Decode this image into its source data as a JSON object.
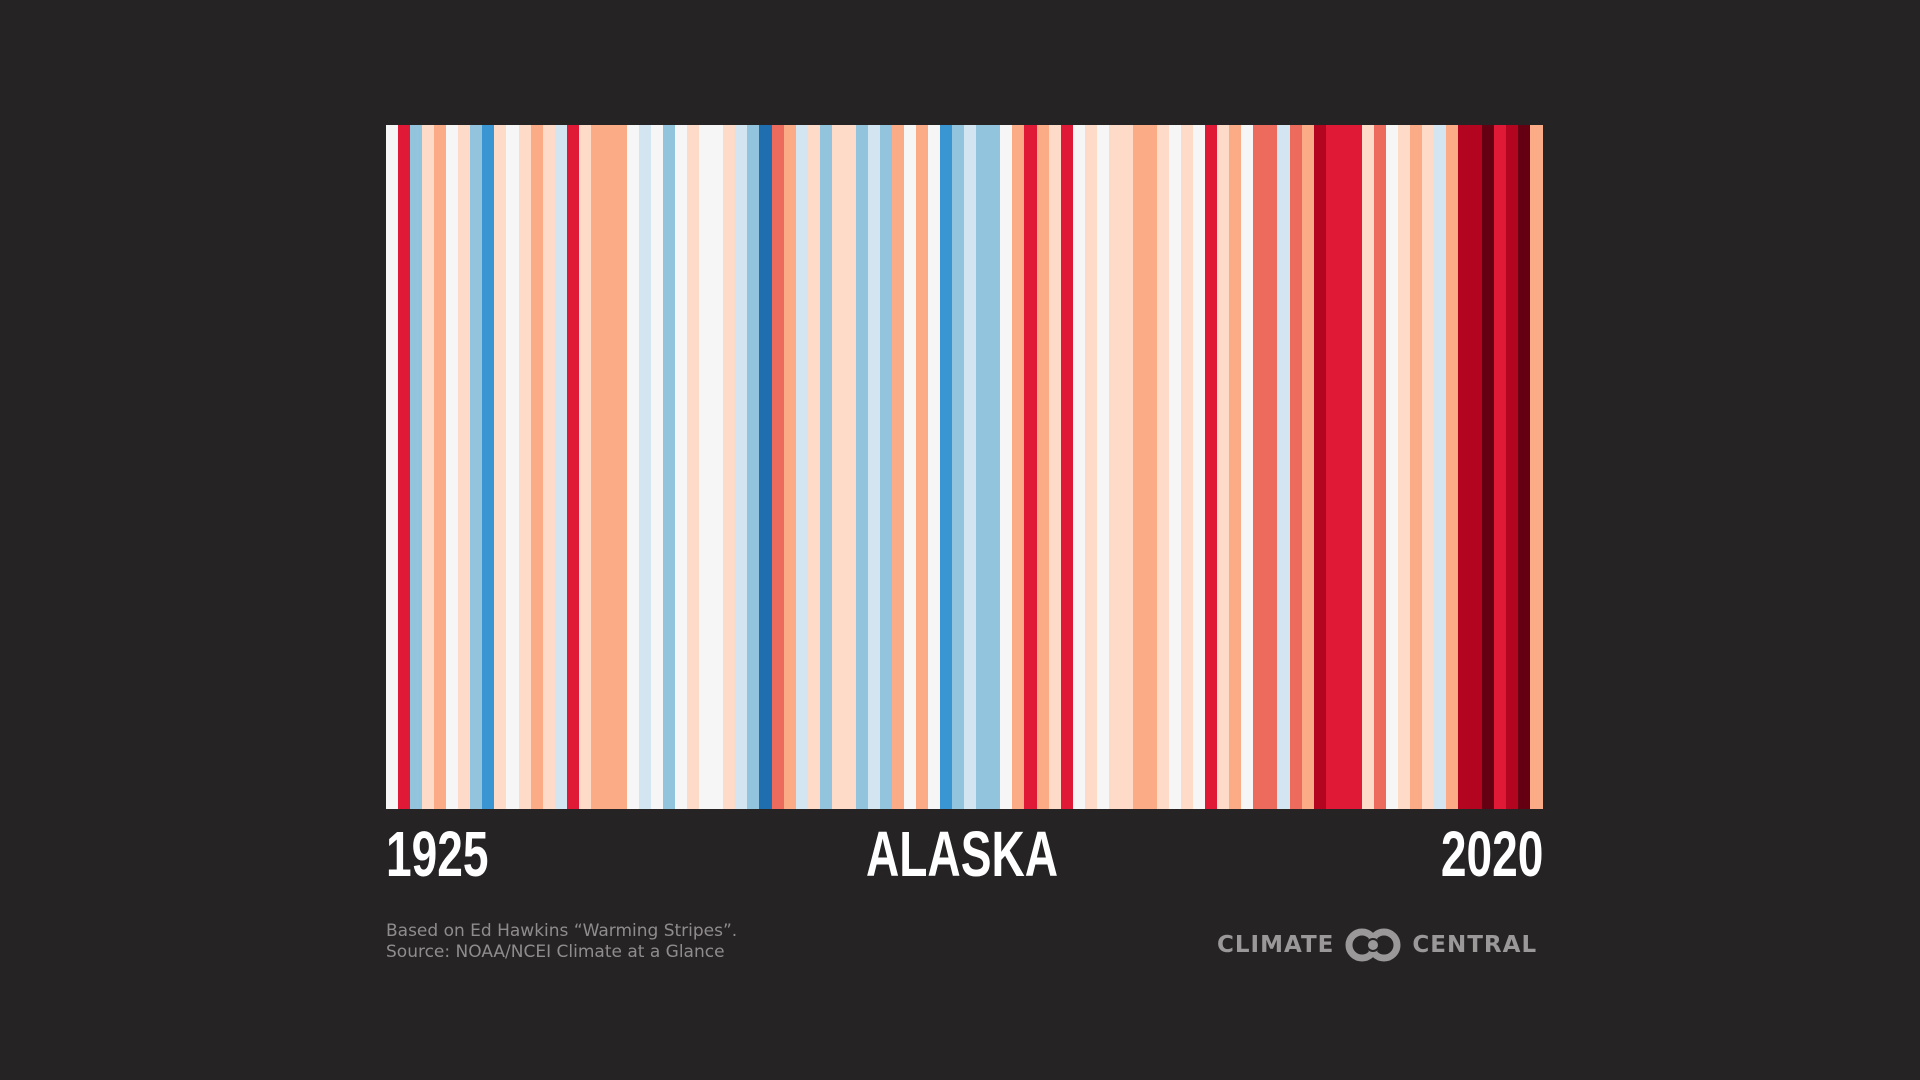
{
  "chart_data": {
    "type": "heatmap",
    "title": "ALASKA",
    "subtitle": "",
    "xlabel": "",
    "ylabel": "",
    "x_start_label": "1925",
    "x_end_label": "2020",
    "years": [
      1925,
      1926,
      1927,
      1928,
      1929,
      1930,
      1931,
      1932,
      1933,
      1934,
      1935,
      1936,
      1937,
      1938,
      1939,
      1940,
      1941,
      1942,
      1943,
      1944,
      1945,
      1946,
      1947,
      1948,
      1949,
      1950,
      1951,
      1952,
      1953,
      1954,
      1955,
      1956,
      1957,
      1958,
      1959,
      1960,
      1961,
      1962,
      1963,
      1964,
      1965,
      1966,
      1967,
      1968,
      1969,
      1970,
      1971,
      1972,
      1973,
      1974,
      1975,
      1976,
      1977,
      1978,
      1979,
      1980,
      1981,
      1982,
      1983,
      1984,
      1985,
      1986,
      1987,
      1988,
      1989,
      1990,
      1991,
      1992,
      1993,
      1994,
      1995,
      1996,
      1997,
      1998,
      1999,
      2000,
      2001,
      2002,
      2003,
      2004,
      2005,
      2006,
      2007,
      2008,
      2009,
      2010,
      2011,
      2012,
      2013,
      2014,
      2015,
      2016,
      2017,
      2018,
      2019,
      2020
    ],
    "color_scale": {
      "DB": "#1f6eb0",
      "B": "#3a95d3",
      "LB": "#92c4de",
      "PB": "#d3e5f0",
      "W": "#f7f6f7",
      "PL": "#fedbc8",
      "S": "#fbab86",
      "C": "#ec6b5c",
      "R": "#e01a36",
      "DR": "#b3051f",
      "VD": "#650013"
    },
    "anomaly_level_order": [
      "DB",
      "B",
      "LB",
      "PB",
      "W",
      "PL",
      "S",
      "C",
      "R",
      "DR",
      "VD"
    ],
    "values": [
      "W",
      "R",
      "LB",
      "PL",
      "S",
      "W",
      "PL",
      "LB",
      "B",
      "PL",
      "W",
      "PL",
      "S",
      "PL",
      "PB",
      "R",
      "PL",
      "S",
      "S",
      "S",
      "W",
      "PB",
      "W",
      "LB",
      "W",
      "PL",
      "W",
      "W",
      "PL",
      "PB",
      "LB",
      "DB",
      "C",
      "S",
      "PB",
      "PL",
      "LB",
      "PL",
      "PL",
      "LB",
      "PB",
      "LB",
      "S",
      "W",
      "S",
      "W",
      "B",
      "LB",
      "PB",
      "LB",
      "LB",
      "W",
      "S",
      "R",
      "S",
      "PL",
      "R",
      "W",
      "PL",
      "W",
      "PL",
      "PL",
      "S",
      "S",
      "PL",
      "W",
      "PL",
      "W",
      "R",
      "PL",
      "S",
      "W",
      "C",
      "C",
      "PB",
      "C",
      "S",
      "DR",
      "R",
      "R",
      "R",
      "PL",
      "C",
      "W",
      "PL",
      "S",
      "PL",
      "PB",
      "S",
      "DR",
      "DR",
      "VD",
      "R",
      "DR",
      "VD",
      "S"
    ],
    "legend": "none",
    "grid": false
  },
  "labels": {
    "start_year": "1925",
    "title": "ALASKA",
    "end_year": "2020"
  },
  "credits": {
    "line1": "Based on Ed Hawkins “Warming Stripes”.",
    "line2": "Source: NOAA/NCEI Climate at a Glance"
  },
  "logo": {
    "left_text": "CLIMATE",
    "right_text": "CENTRAL",
    "icon": "interlocking-rings-icon"
  },
  "colors": {
    "background": "#262324",
    "label_text": "#ffffff",
    "credit_text": "#8f8c8d",
    "logo": "#9a9899"
  }
}
